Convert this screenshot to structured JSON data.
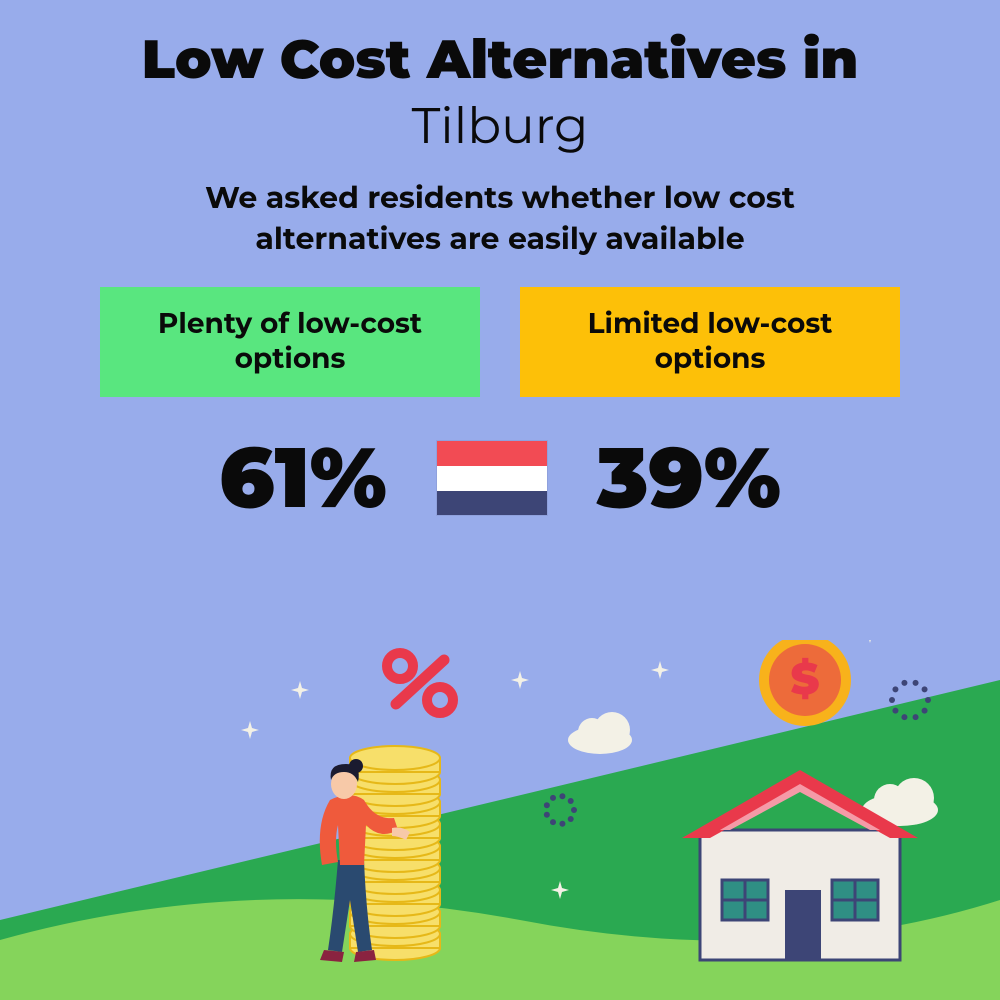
{
  "background_color": "#98aceb",
  "title": {
    "line1": "Low Cost Alternatives in",
    "line2": "Tilburg",
    "line1_fontsize": 54,
    "line2_fontsize": 50
  },
  "subtitle": {
    "text": "We asked residents whether low cost alternatives are easily available",
    "fontsize": 30
  },
  "options": {
    "left": {
      "label": "Plenty of low-cost options",
      "bg_color": "#59e67f",
      "fontsize": 28
    },
    "right": {
      "label": "Limited low-cost options",
      "bg_color": "#fdc008",
      "fontsize": 28
    }
  },
  "stats": {
    "left_value": "61%",
    "right_value": "39%",
    "fontsize": 84
  },
  "flag": {
    "stripe1": "#f24b54",
    "stripe2": "#ffffff",
    "stripe3": "#3d4576"
  },
  "illustration": {
    "ground_back": "#2aa951",
    "ground_front": "#85d45b",
    "house_wall": "#f0ece6",
    "house_roof": "#e9394b",
    "house_roof_top": "#f59aa7",
    "house_door": "#3d4576",
    "house_window": "#2f8f84",
    "house_window_frame": "#3d4576",
    "coin_fill": "#f7df6a",
    "coin_stroke": "#e6b818",
    "big_coin_fill": "#f8b21b",
    "big_coin_inner": "#ed6b3a",
    "dollar_color": "#e9394b",
    "percent_color": "#e9394b",
    "person_shirt": "#ef5a3c",
    "person_pants": "#2a4a70",
    "person_skin": "#f7c9a8",
    "person_hair": "#1b1b30",
    "person_shoes": "#8a2340",
    "cloud": "#f3f1e6",
    "sparkle": "#f3f1e6",
    "dotted_ring": "#3d4576"
  }
}
